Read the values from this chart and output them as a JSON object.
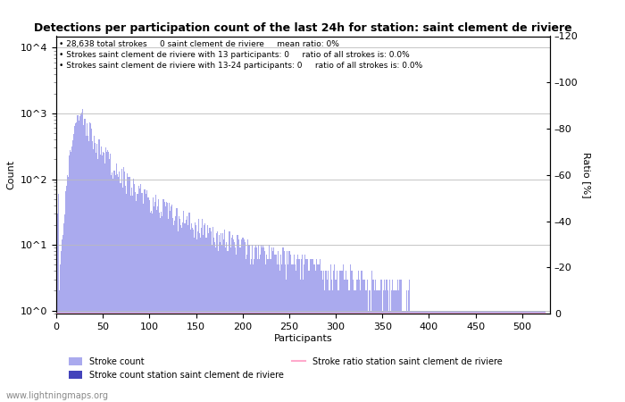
{
  "title": "Detections per participation count of the last 24h for station: saint clement de riviere",
  "xlabel": "Participants",
  "ylabel_left": "Count",
  "ylabel_right": "Ratio [%]",
  "annotation_lines": [
    "28,638 total strokes     0 saint clement de riviere     mean ratio: 0%",
    "Strokes saint clement de riviere with 13 participants: 0     ratio of all strokes is: 0.0%",
    "Strokes saint clement de riviere with 13-24 participants: 0     ratio of all strokes is: 0.0%"
  ],
  "bar_color": "#aaaaee",
  "station_bar_color": "#4444bb",
  "ratio_line_color": "#ffaacc",
  "background_color": "#ffffff",
  "watermark": "www.lightningmaps.org",
  "ylim_right": [
    0,
    120
  ],
  "xlim": [
    0,
    530
  ],
  "right_yticks": [
    0,
    20,
    40,
    60,
    80,
    100,
    120
  ]
}
